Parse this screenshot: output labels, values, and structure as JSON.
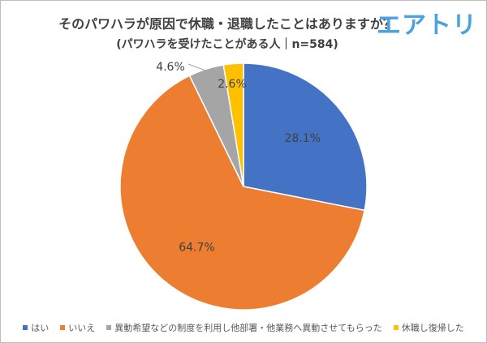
{
  "logo": "エアトリ",
  "chart_data": {
    "type": "pie",
    "title": "そのパワハラが原因で休職・退職したことはありますか？",
    "subtitle": "(パワハラを受けたことがある人｜n=584)",
    "start": "top",
    "direction": "clockwise",
    "legend_position": "bottom",
    "slices": [
      {
        "label": "はい",
        "value": 28.1,
        "display": "28.1%",
        "color": "#4472C4"
      },
      {
        "label": "いいえ",
        "value": 64.7,
        "display": "64.7%",
        "color": "#ED7D31"
      },
      {
        "label": "異動希望などの制度を利用し他部署・他業務へ異動させてもらった",
        "value": 4.6,
        "display": "4.6%",
        "color": "#A5A5A5"
      },
      {
        "label": "休職し復帰した",
        "value": 2.6,
        "display": "2.6%",
        "color": "#FFC000"
      }
    ]
  }
}
